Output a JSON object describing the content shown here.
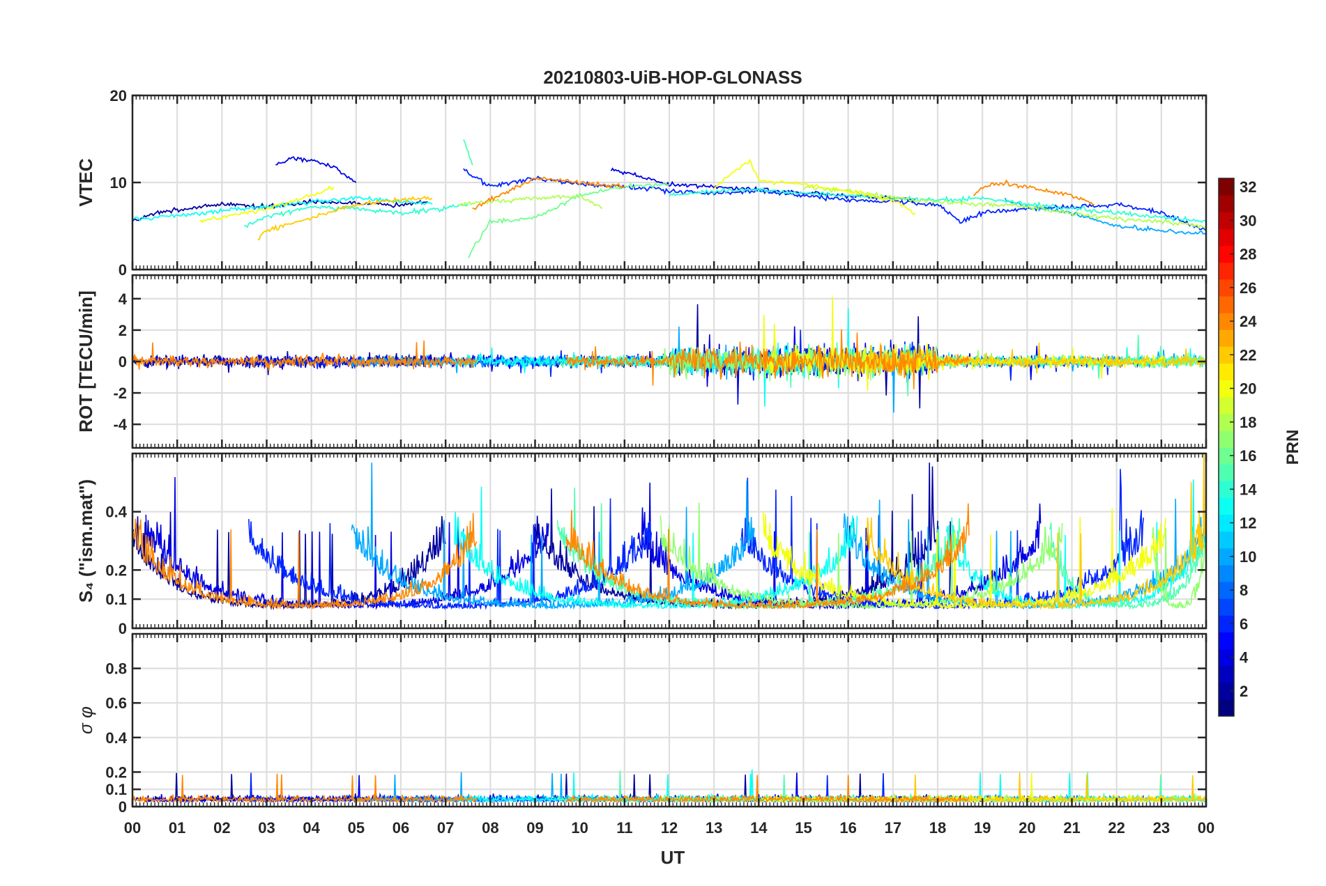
{
  "chart_data": {
    "type": "line",
    "title": "20210803-UiB-HOP-GLONASS",
    "xlabel": "UT",
    "x_ticks": [
      "00",
      "01",
      "02",
      "03",
      "04",
      "05",
      "06",
      "07",
      "08",
      "09",
      "10",
      "11",
      "12",
      "13",
      "14",
      "15",
      "16",
      "17",
      "18",
      "19",
      "20",
      "21",
      "22",
      "23",
      "00"
    ],
    "xlim": [
      0,
      24
    ],
    "grid": true,
    "panels": [
      {
        "id": "vtec",
        "ylabel": "VTEC",
        "ylim": [
          0,
          20
        ],
        "yticks": [
          0,
          10,
          20
        ],
        "ytick_labels": [
          "0",
          "10",
          "20"
        ],
        "series": [
          {
            "prn": 2,
            "x": [
              0,
              0.5,
              1,
              2,
              3,
              4,
              5,
              6,
              6.6
            ],
            "y": [
              5.5,
              6.5,
              6.8,
              7.5,
              7.2,
              7.8,
              7.6,
              7.4,
              7.8
            ]
          },
          {
            "prn": 4,
            "x": [
              3.2,
              3.5,
              4,
              4.5,
              5
            ],
            "y": [
              12.0,
              12.8,
              12.5,
              11.8,
              10.0
            ]
          },
          {
            "prn": 4,
            "x": [
              10.7,
              11,
              12,
              13,
              14,
              15,
              16,
              17.5
            ],
            "y": [
              11.5,
              11.2,
              9.8,
              9.5,
              9.2,
              8.8,
              8.5,
              8.0
            ]
          },
          {
            "prn": 6,
            "x": [
              7.4,
              8,
              9,
              10,
              11,
              12,
              13,
              14,
              15,
              16,
              17,
              18,
              18.5,
              19,
              20,
              21,
              22,
              23,
              24
            ],
            "y": [
              11.5,
              9.5,
              10.5,
              9.8,
              9.5,
              9.0,
              8.8,
              9.0,
              8.5,
              8.0,
              7.8,
              7.5,
              5.5,
              6.5,
              7.0,
              7.2,
              7.5,
              6.5,
              4.5
            ]
          },
          {
            "prn": 10,
            "x": [
              19.5,
              20,
              21,
              22,
              23,
              24
            ],
            "y": [
              8.0,
              7.2,
              6.5,
              5.0,
              4.5,
              4.0
            ]
          },
          {
            "prn": 13,
            "x": [
              0,
              1,
              2,
              3,
              4,
              5,
              6,
              6.7
            ],
            "y": [
              5.8,
              6.2,
              6.8,
              7.2,
              7.8,
              8.2,
              7.8,
              7.5
            ]
          },
          {
            "prn": 14,
            "x": [
              2.5,
              3,
              4,
              5,
              6,
              7,
              7.5
            ],
            "y": [
              5.0,
              6.0,
              7.2,
              7.0,
              6.5,
              7.0,
              7.5
            ]
          },
          {
            "prn": 14,
            "x": [
              12,
              13,
              14,
              15,
              16,
              17,
              18,
              19,
              20,
              21,
              22,
              23,
              24
            ],
            "y": [
              8.5,
              9.0,
              9.2,
              8.8,
              8.5,
              8.2,
              8.0,
              8.2,
              7.5,
              7.0,
              6.5,
              6.0,
              5.5
            ]
          },
          {
            "prn": 15,
            "x": [
              7.4,
              7.6
            ],
            "y": [
              15.0,
              12.0
            ]
          },
          {
            "prn": 16,
            "x": [
              7.5,
              8,
              9,
              10,
              11,
              12
            ],
            "y": [
              1.5,
              5.5,
              6.0,
              8.5,
              9.5,
              9.8
            ]
          },
          {
            "prn": 18,
            "x": [
              7.3,
              8,
              9,
              10,
              10.5
            ],
            "y": [
              7.5,
              7.8,
              8.2,
              8.5,
              7.0
            ]
          },
          {
            "prn": 18,
            "x": [
              15,
              16,
              17,
              18,
              19,
              20,
              21,
              22,
              23,
              24
            ],
            "y": [
              9.5,
              9.0,
              8.2,
              7.8,
              7.5,
              7.2,
              6.5,
              5.8,
              5.5,
              5.0
            ]
          },
          {
            "prn": 20,
            "x": [
              1.5,
              2,
              3,
              4,
              4.5
            ],
            "y": [
              5.5,
              6.0,
              7.0,
              8.5,
              9.5
            ]
          },
          {
            "prn": 20,
            "x": [
              13,
              13.8,
              14,
              15,
              16,
              17,
              17.5
            ],
            "y": [
              9.5,
              12.5,
              10.2,
              9.8,
              9.0,
              8.0,
              6.5
            ]
          },
          {
            "prn": 22,
            "x": [
              2.8,
              3,
              4,
              5,
              6,
              6.7
            ],
            "y": [
              3.5,
              4.5,
              6.0,
              7.5,
              8.0,
              8.2
            ]
          },
          {
            "prn": 24,
            "x": [
              7.6,
              8,
              9,
              10,
              11
            ],
            "y": [
              7.0,
              8.0,
              10.5,
              10.0,
              9.5
            ]
          },
          {
            "prn": 24,
            "x": [
              18.8,
              19,
              19.5,
              20,
              21,
              21.5
            ],
            "y": [
              8.5,
              9.5,
              10.0,
              9.5,
              8.5,
              7.5
            ]
          }
        ]
      },
      {
        "id": "rot",
        "ylabel": "ROT [TECU/min]",
        "ylim": [
          -5.5,
          5.5
        ],
        "yticks": [
          -4,
          -2,
          0,
          2,
          4
        ],
        "ytick_labels": [
          "-4",
          "-2",
          "0",
          "2",
          "4"
        ]
      },
      {
        "id": "s4",
        "ylabel": "S₄ (\"ism.mat\")",
        "ylim": [
          0,
          0.6
        ],
        "yticks": [
          0,
          0.1,
          0.2,
          0.4
        ],
        "ytick_labels": [
          "0",
          "0.1",
          "0.2",
          "0.4"
        ]
      },
      {
        "id": "sigma_phi",
        "ylabel": "σ φ",
        "ylim": [
          0,
          1
        ],
        "yticks": [
          0,
          0.1,
          0.2,
          0.4,
          0.6,
          0.8
        ],
        "ytick_labels": [
          "0",
          "0.1",
          "0.2",
          "0.4",
          "0.6",
          "0.8"
        ]
      }
    ],
    "colorbar": {
      "label": "PRN",
      "range": [
        1,
        32
      ],
      "ticks": [
        "2",
        "4",
        "6",
        "8",
        "10",
        "12",
        "14",
        "16",
        "18",
        "20",
        "22",
        "24",
        "26",
        "28",
        "30",
        "32"
      ],
      "colormap": "jet"
    }
  }
}
